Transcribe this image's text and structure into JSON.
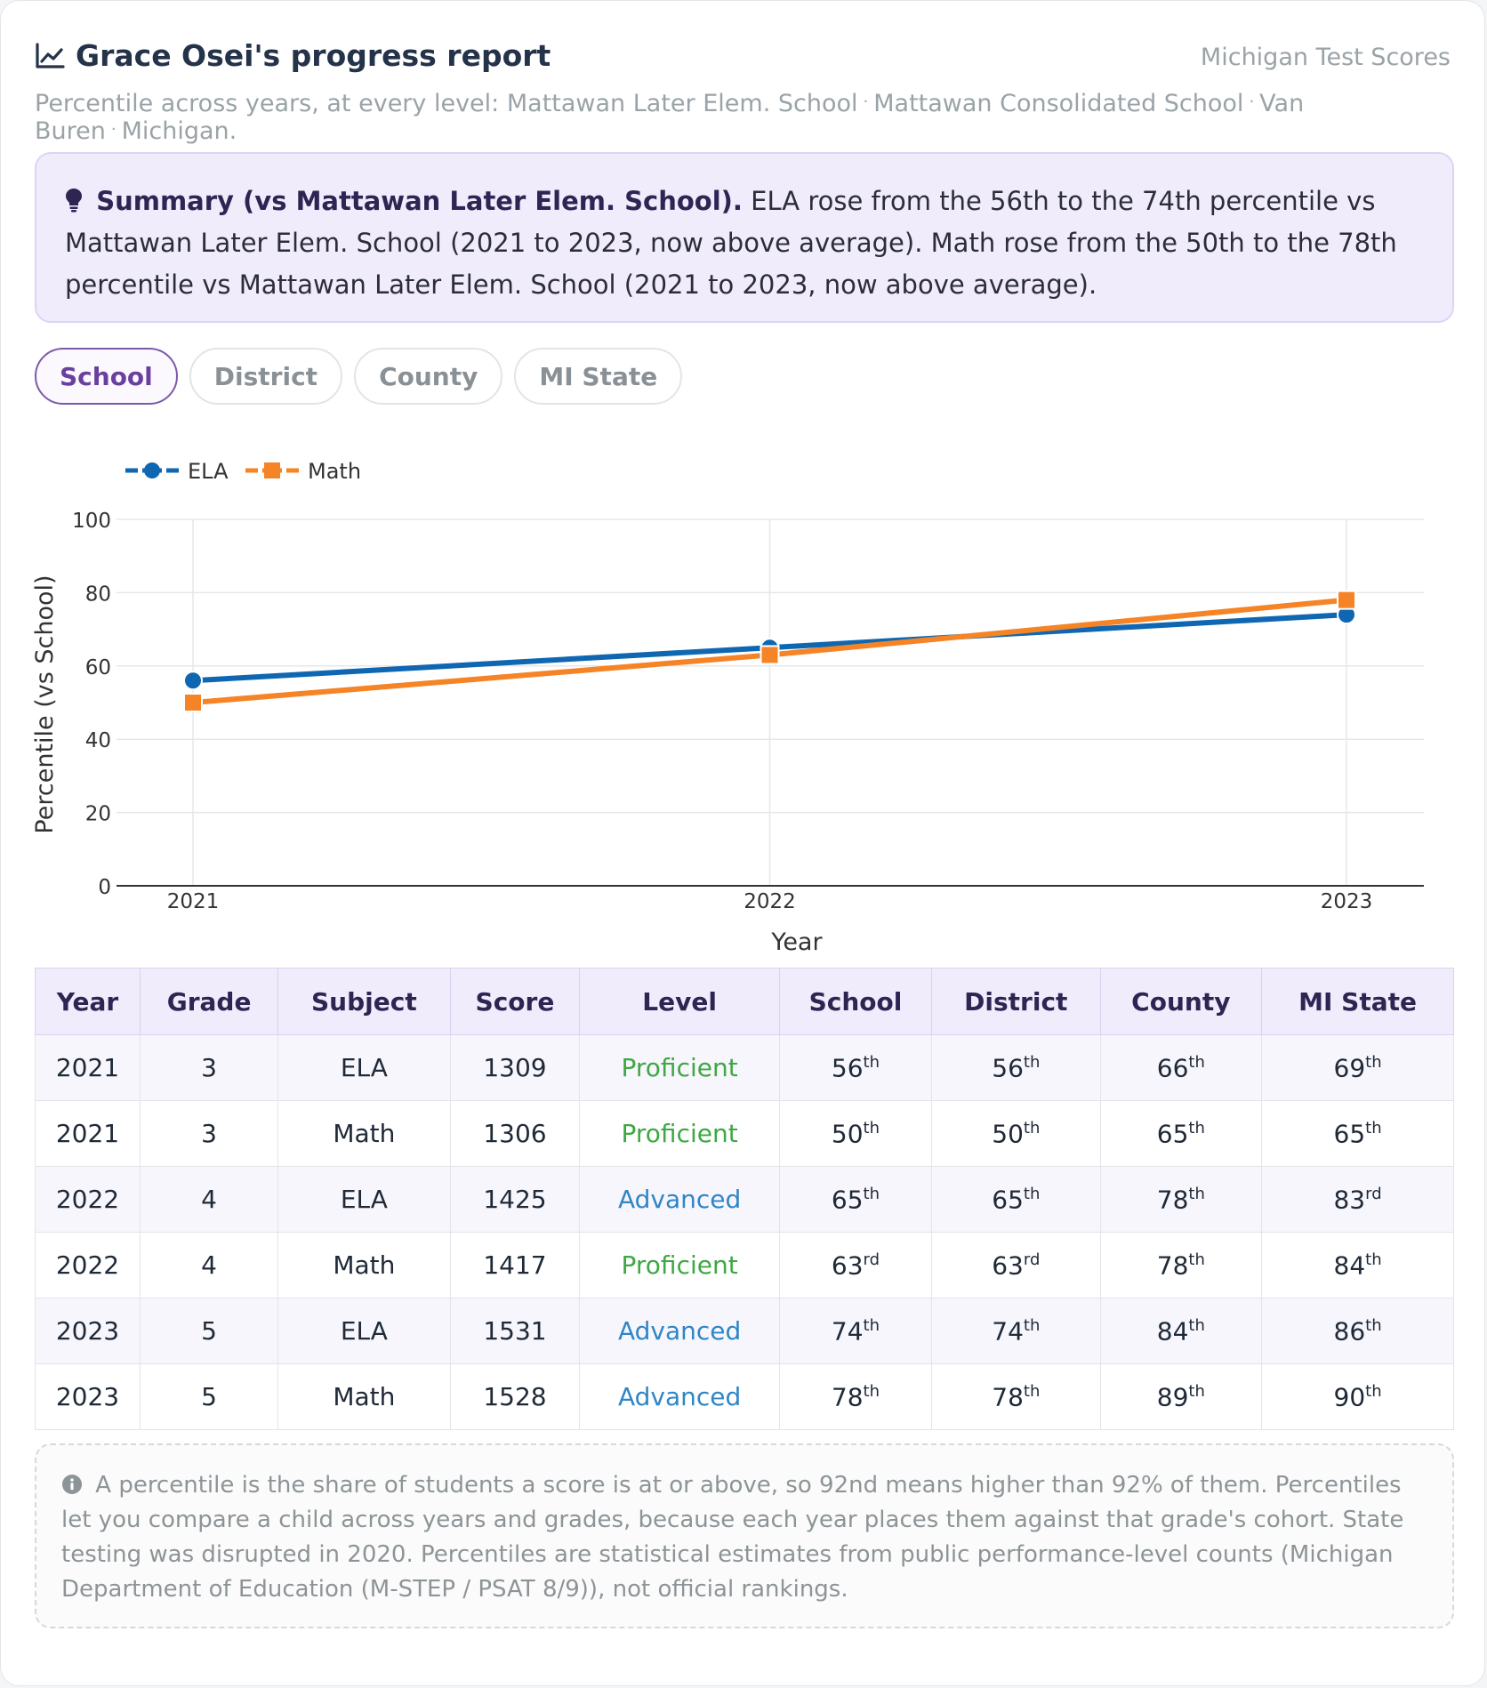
{
  "header": {
    "title": "Grace Osei's progress report",
    "source": "Michigan Test Scores",
    "subtitle_prefix": "Percentile across years, at every level:",
    "levels": [
      "Mattawan Later Elem. School",
      "Mattawan Consolidated School",
      "Van Buren",
      "Michigan."
    ]
  },
  "summary": {
    "lead": "Summary (vs Mattawan Later Elem. School).",
    "text": "ELA rose from the 56th to the 74th percentile vs Mattawan Later Elem. School (2021 to 2023, now above average). Math rose from the 50th to the 78th percentile vs Mattawan Later Elem. School (2021 to 2023, now above average)."
  },
  "tabs": [
    {
      "label": "School",
      "active": true
    },
    {
      "label": "District",
      "active": false
    },
    {
      "label": "County",
      "active": false
    },
    {
      "label": "MI State",
      "active": false
    }
  ],
  "chart_data": {
    "type": "line",
    "x": [
      2021,
      2022,
      2023
    ],
    "series": [
      {
        "name": "ELA",
        "values": [
          56,
          65,
          74
        ],
        "color": "#0f67b1",
        "marker": "circle"
      },
      {
        "name": "Math",
        "values": [
          50,
          63,
          78
        ],
        "color": "#f58426",
        "marker": "square"
      }
    ],
    "xlabel": "Year",
    "ylabel": "Percentile (vs School)",
    "ylim": [
      0,
      100
    ],
    "yticks": [
      0,
      20,
      40,
      60,
      80,
      100
    ],
    "grid": true,
    "legend": "top-left"
  },
  "table": {
    "headers": [
      "Year",
      "Grade",
      "Subject",
      "Score",
      "Level",
      "School",
      "District",
      "County",
      "MI State"
    ],
    "rows": [
      {
        "year": "2021",
        "grade": "3",
        "subject": "ELA",
        "score": "1309",
        "level": "Proficient",
        "pct": [
          [
            "56",
            "th"
          ],
          [
            "56",
            "th"
          ],
          [
            "66",
            "th"
          ],
          [
            "69",
            "th"
          ]
        ]
      },
      {
        "year": "2021",
        "grade": "3",
        "subject": "Math",
        "score": "1306",
        "level": "Proficient",
        "pct": [
          [
            "50",
            "th"
          ],
          [
            "50",
            "th"
          ],
          [
            "65",
            "th"
          ],
          [
            "65",
            "th"
          ]
        ]
      },
      {
        "year": "2022",
        "grade": "4",
        "subject": "ELA",
        "score": "1425",
        "level": "Advanced",
        "pct": [
          [
            "65",
            "th"
          ],
          [
            "65",
            "th"
          ],
          [
            "78",
            "th"
          ],
          [
            "83",
            "rd"
          ]
        ]
      },
      {
        "year": "2022",
        "grade": "4",
        "subject": "Math",
        "score": "1417",
        "level": "Proficient",
        "pct": [
          [
            "63",
            "rd"
          ],
          [
            "63",
            "rd"
          ],
          [
            "78",
            "th"
          ],
          [
            "84",
            "th"
          ]
        ]
      },
      {
        "year": "2023",
        "grade": "5",
        "subject": "ELA",
        "score": "1531",
        "level": "Advanced",
        "pct": [
          [
            "74",
            "th"
          ],
          [
            "74",
            "th"
          ],
          [
            "84",
            "th"
          ],
          [
            "86",
            "th"
          ]
        ]
      },
      {
        "year": "2023",
        "grade": "5",
        "subject": "Math",
        "score": "1528",
        "level": "Advanced",
        "pct": [
          [
            "78",
            "th"
          ],
          [
            "78",
            "th"
          ],
          [
            "89",
            "th"
          ],
          [
            "90",
            "th"
          ]
        ]
      }
    ]
  },
  "colors": {
    "proficient": "#3ea843",
    "advanced": "#2f86c6",
    "accent": "#6b3fa0"
  },
  "note": "A percentile is the share of students a score is at or above, so 92nd means higher than 92% of them. Percentiles let you compare a child across years and grades, because each year places them against that grade's cohort. State testing was disrupted in 2020. Percentiles are statistical estimates from public performance-level counts (Michigan Department of Education (M-STEP / PSAT 8/9)), not official rankings."
}
